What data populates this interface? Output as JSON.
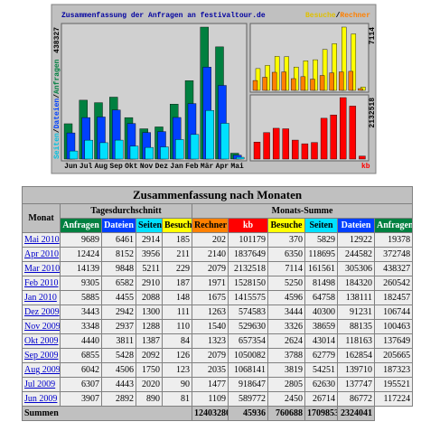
{
  "chart": {
    "title": "Zusammenfassung der Anfragen an festivaltour.de",
    "left_label": [
      "Seiten",
      "Dateien",
      "Anfragen"
    ],
    "right_label": [
      "Besuche",
      "Rechner"
    ],
    "separator": "/",
    "bottom_label": "kb",
    "months": [
      "Jun",
      "Jul",
      "Aug",
      "Sep",
      "Okt",
      "Nov",
      "Dez",
      "Jan",
      "Feb",
      "Mär",
      "Apr",
      "Mai"
    ]
  },
  "table": {
    "title": "Zusammenfassung nach Monaten",
    "month_header": "Monat",
    "group_headers": [
      "Tagesdurchschnitt",
      "Monats-Summe"
    ],
    "columns": [
      "Anfragen",
      "Dateien",
      "Seiten",
      "Besuche",
      "Rechner",
      "kb",
      "Besuche",
      "Seiten",
      "Dateien",
      "Anfragen"
    ],
    "column_colors": [
      "#008040",
      "#0040ff",
      "#00e0ff",
      "#ffff00",
      "#ff8000",
      "#ff0000",
      "#ffff00",
      "#00e0ff",
      "#0040ff",
      "#008040"
    ],
    "rows": [
      [
        "Mai 2010",
        9689,
        6461,
        2914,
        185,
        202,
        101179,
        370,
        5829,
        12922,
        19378
      ],
      [
        "Apr 2010",
        12424,
        8152,
        3956,
        211,
        2140,
        1837649,
        6350,
        118695,
        244582,
        372748
      ],
      [
        "Mar 2010",
        14139,
        9848,
        5211,
        229,
        2079,
        2132518,
        7114,
        161561,
        305306,
        438327
      ],
      [
        "Feb 2010",
        9305,
        6582,
        2910,
        187,
        1971,
        1528150,
        5250,
        81498,
        184320,
        260542
      ],
      [
        "Jan 2010",
        5885,
        4455,
        2088,
        148,
        1675,
        1415575,
        4596,
        64758,
        138111,
        182457
      ],
      [
        "Dez 2009",
        3443,
        2942,
        1300,
        111,
        1263,
        574583,
        3444,
        40300,
        91231,
        106744
      ],
      [
        "Nov 2009",
        3348,
        2937,
        1288,
        110,
        1540,
        529630,
        3326,
        38659,
        88135,
        100463
      ],
      [
        "Okt 2009",
        4440,
        3811,
        1387,
        84,
        1323,
        657354,
        2624,
        43014,
        118163,
        137649
      ],
      [
        "Sep 2009",
        6855,
        5428,
        2092,
        126,
        2079,
        1050082,
        3788,
        62779,
        162854,
        205665
      ],
      [
        "Aug 2009",
        6042,
        4506,
        1750,
        123,
        2035,
        1068141,
        3819,
        54251,
        139710,
        187323
      ],
      [
        "Jul 2009",
        6307,
        4443,
        2020,
        90,
        1477,
        918647,
        2805,
        62630,
        137747,
        195521
      ],
      [
        "Jun 2009",
        3907,
        2892,
        890,
        81,
        1109,
        589772,
        2450,
        26714,
        86772,
        117224
      ]
    ],
    "totals": {
      "label": "Summen",
      "values": [
        12403280,
        45936,
        760688,
        1709853,
        2324041
      ]
    }
  }
}
